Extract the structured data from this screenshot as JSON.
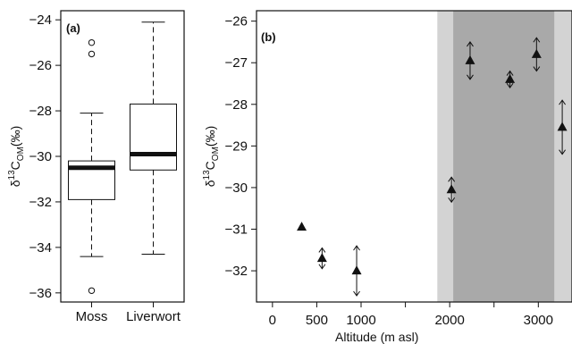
{
  "chart_data": [
    {
      "type": "box",
      "panel_label": "(a)",
      "ylabel": "δ13C_OM(‰)",
      "ylabel_parts": {
        "prefix": "δ",
        "sup": "13",
        "base": "C",
        "sub": "OM",
        "suffix": "(‰)"
      },
      "ylim": [
        -36.4,
        -23.6
      ],
      "yticks": [
        -36,
        -34,
        -32,
        -30,
        -28,
        -26,
        -24
      ],
      "ytick_labels": [
        "−36",
        "−34",
        "−32",
        "−30",
        "−28",
        "−26",
        "−24"
      ],
      "categories": [
        "Moss",
        "Liverwort"
      ],
      "boxes": [
        {
          "name": "Moss",
          "whisker_low": -34.4,
          "q1": -31.9,
          "median": -30.5,
          "q3": -30.2,
          "whisker_high": -28.1,
          "outliers": [
            -25.0,
            -25.5,
            -35.9
          ]
        },
        {
          "name": "Liverwort",
          "whisker_low": -34.3,
          "q1": -30.6,
          "median": -29.9,
          "q3": -27.7,
          "whisker_high": -24.1,
          "outliers": []
        }
      ]
    },
    {
      "type": "scatter",
      "panel_label": "(b)",
      "xlabel": "Altitude (m asl)",
      "ylabel": "δ13C_OM(‰)",
      "ylabel_parts": {
        "prefix": "δ",
        "sup": "13",
        "base": "C",
        "sub": "OM",
        "suffix": "(‰)"
      },
      "xlim": [
        -180,
        3380
      ],
      "ylim": [
        -32.75,
        -25.75
      ],
      "xticks": [
        0,
        500,
        1000,
        1500,
        2000,
        2500,
        3000
      ],
      "xtick_labels": [
        "0",
        "500",
        "1000",
        "",
        "2000",
        "",
        "3000"
      ],
      "yticks": [
        -32,
        -31,
        -30,
        -29,
        -28,
        -27,
        -26
      ],
      "ytick_labels": [
        "−32",
        "−31",
        "−30",
        "−29",
        "−28",
        "−27",
        "−26"
      ],
      "shaded_regions": [
        {
          "from": 1860,
          "to": 3380,
          "color": "#d3d3d3"
        },
        {
          "from": 2040,
          "to": 3180,
          "color": "#a9a9a9"
        }
      ],
      "points": [
        {
          "x": 330,
          "y": -30.95,
          "err": 0.0
        },
        {
          "x": 560,
          "y": -31.7,
          "err": 0.25
        },
        {
          "x": 950,
          "y": -32.0,
          "err": 0.6
        },
        {
          "x": 2020,
          "y": -30.05,
          "err": 0.3
        },
        {
          "x": 2230,
          "y": -26.95,
          "err": 0.45
        },
        {
          "x": 2680,
          "y": -27.4,
          "err": 0.2
        },
        {
          "x": 2980,
          "y": -26.8,
          "err": 0.4
        },
        {
          "x": 3270,
          "y": -28.55,
          "err": 0.65
        }
      ]
    }
  ]
}
